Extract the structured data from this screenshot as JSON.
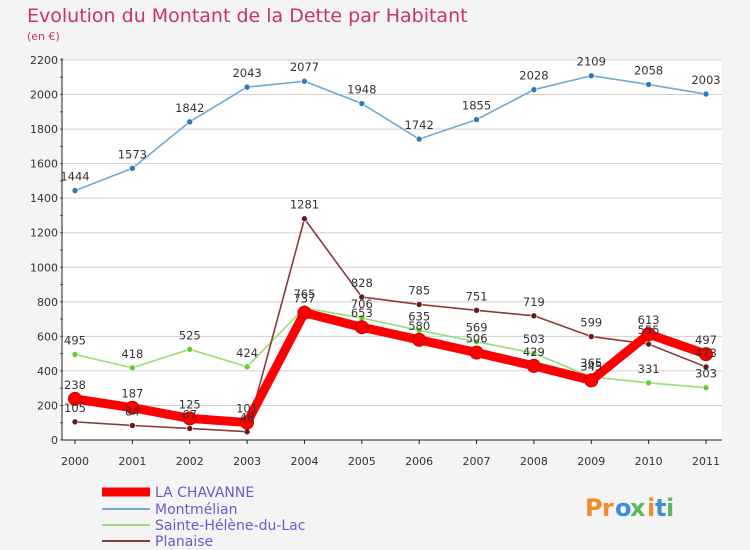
{
  "title": "Evolution du Montant de la Dette par Habitant",
  "subtitle": "(en €)",
  "logo": "Proxiti",
  "colors": {
    "background": "#f4f4f4",
    "plot_bg": "#ffffff",
    "axis": "#222222",
    "grid": "#d0d0d0",
    "minor_tick": "#cc3366",
    "title": "#c8326e"
  },
  "chart_data": {
    "type": "line",
    "title": "Evolution du Montant de la Dette par Habitant",
    "subtitle": "(en €)",
    "x": [
      "2000",
      "2001",
      "2002",
      "2003",
      "2004",
      "2005",
      "2006",
      "2007",
      "2008",
      "2009",
      "2010",
      "2011"
    ],
    "ylim": [
      0,
      2200
    ],
    "yticks": [
      "0",
      "200",
      "400",
      "600",
      "800",
      "1000",
      "1200",
      "1400",
      "1600",
      "1800",
      "2000",
      "2200"
    ],
    "grid": "horizontal",
    "legend_position": "bottom-left",
    "series": [
      {
        "name": "LA CHAVANNE",
        "values": [
          238,
          187,
          125,
          101,
          737,
          653,
          580,
          506,
          429,
          345,
          613,
          497
        ],
        "labels": [
          "238",
          "187",
          "125",
          "101",
          "737",
          "653",
          "580",
          "506",
          "429",
          "345",
          "613",
          "497"
        ],
        "color": "#ff0000",
        "marker_color": "#ff0000"
      },
      {
        "name": "Montmélian",
        "values": [
          1444,
          1573,
          1842,
          2043,
          2077,
          1948,
          1742,
          1855,
          2028,
          2109,
          2058,
          2003
        ],
        "labels": [
          "1444",
          "1573",
          "1842",
          "2043",
          "2077",
          "1948",
          "1742",
          "1855",
          "2028",
          "2109",
          "2058",
          "2003"
        ],
        "color": "#6fa8d6",
        "marker_color": "#2b7bbf"
      },
      {
        "name": "Sainte-Hélène-du-Lac",
        "values": [
          495,
          418,
          525,
          424,
          765,
          706,
          635,
          569,
          503,
          365,
          331,
          303
        ],
        "labels": [
          "495",
          "418",
          "525",
          "424",
          "765",
          "706",
          "635",
          "569",
          "503",
          "365",
          "331",
          "303"
        ],
        "color": "#99dd77",
        "marker_color": "#66cc33"
      },
      {
        "name": "Planaise",
        "values": [
          105,
          84,
          67,
          48,
          1281,
          828,
          785,
          751,
          719,
          599,
          555,
          423
        ],
        "labels": [
          "105",
          "84",
          "67",
          "48",
          "1281",
          "828",
          "785",
          "751",
          "719",
          "599",
          "555",
          "423"
        ],
        "color": "#8b3a3a",
        "marker_color": "#661a1a"
      }
    ]
  }
}
